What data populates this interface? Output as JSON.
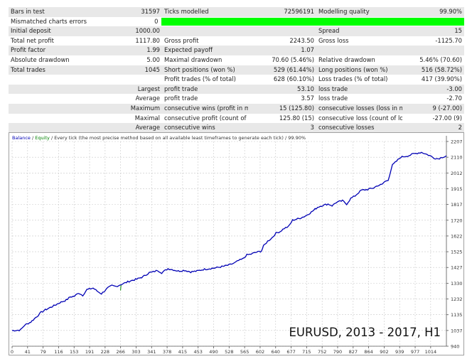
{
  "report": {
    "rows": [
      {
        "alt": true,
        "cells": [
          "Bars in test",
          "31597",
          "Ticks modelled",
          "72596191",
          "Modelling quality",
          "99.90%"
        ]
      },
      {
        "alt": false,
        "bar": true,
        "cells": [
          "Mismatched charts errors",
          "0"
        ]
      },
      {
        "alt": true,
        "cells": [
          "Initial deposit",
          "1000.00",
          "",
          "",
          "Spread",
          "15"
        ]
      },
      {
        "alt": false,
        "cells": [
          "Total net profit",
          "1117.80",
          "Gross profit",
          "2243.50",
          "Gross loss",
          "-1125.70"
        ]
      },
      {
        "alt": true,
        "cells": [
          "Profit factor",
          "1.99",
          "Expected payoff",
          "1.07",
          "",
          ""
        ]
      },
      {
        "alt": false,
        "cells": [
          "Absolute drawdown",
          "5.00",
          "Maximal drawdown",
          "70.60 (5.46%)",
          "Relative drawdown",
          "5.46% (70.60)"
        ]
      },
      {
        "alt": true,
        "cells": [
          "Total trades",
          "1045",
          "Short positions (won %)",
          "529 (61.44%)",
          "Long positions (won %)",
          "516 (58.72%)"
        ]
      },
      {
        "alt": false,
        "cells": [
          "",
          "",
          "Profit trades (% of total)",
          "628 (60.10%)",
          "Loss trades (% of total)",
          "417 (39.90%)"
        ]
      },
      {
        "alt": true,
        "cells": [
          "",
          "Largest",
          "profit trade",
          "53.10",
          "loss trade",
          "-3.00"
        ]
      },
      {
        "alt": false,
        "cells": [
          "",
          "Average",
          "profit trade",
          "3.57",
          "loss trade",
          "-2.70"
        ]
      },
      {
        "alt": true,
        "cells": [
          "",
          "Maximum",
          "consecutive wins (profit in mon...",
          "15 (125.80)",
          "consecutive losses (loss in money)",
          "9 (-27.00)"
        ]
      },
      {
        "alt": false,
        "cells": [
          "",
          "Maximal",
          "consecutive profit (count of wins)",
          "125.80 (15)",
          "consecutive loss (count of losses)",
          "-27.00 (9)"
        ]
      },
      {
        "alt": true,
        "cells": [
          "",
          "Average",
          "consecutive wins",
          "3",
          "consecutive losses",
          "2"
        ]
      }
    ]
  },
  "chart_data": {
    "type": "line",
    "legend": {
      "balance": "Balance",
      "sep": "/",
      "equity": "Equity",
      "rest": "/ Every tick (the most precise method based on all available least timeframes to generate each tick) / 99.90%"
    },
    "watermark": "EURUSD, 2013 - 2017, H1",
    "x_ticks": [
      "0",
      "41",
      "79",
      "116",
      "153",
      "191",
      "228",
      "266",
      "303",
      "341",
      "378",
      "415",
      "453",
      "490",
      "528",
      "565",
      "602",
      "640",
      "677",
      "715",
      "752",
      "790",
      "827",
      "864",
      "902",
      "939",
      "977",
      "1014"
    ],
    "y_ticks": [
      "2207",
      "2110",
      "2012",
      "1915",
      "1817",
      "1720",
      "1622",
      "1525",
      "1427",
      "1330",
      "1232",
      "1135",
      "1037",
      "940"
    ],
    "xlim": [
      0,
      1045
    ],
    "ylim": [
      940,
      2207
    ],
    "colors": {
      "balance": "#0000b4",
      "equity": "#008000",
      "grid": "#c8c8c8",
      "axis": "#555555"
    },
    "series": [
      {
        "name": "Balance",
        "x": [
          0,
          20,
          30,
          45,
          60,
          70,
          80,
          100,
          115,
          130,
          140,
          150,
          160,
          170,
          180,
          195,
          205,
          215,
          230,
          240,
          250,
          260,
          275,
          285,
          300,
          315,
          330,
          340,
          350,
          360,
          375,
          385,
          400,
          415,
          430,
          445,
          460,
          475,
          490,
          510,
          525,
          535,
          545,
          555,
          565,
          575,
          585,
          595,
          600,
          605,
          615,
          625,
          635,
          645,
          655,
          665,
          675,
          690,
          705,
          720,
          735,
          745,
          760,
          770,
          780,
          795,
          805,
          815,
          825,
          840,
          855,
          870,
          880,
          890,
          895,
          905,
          915,
          925,
          935,
          945,
          955,
          965,
          975,
          985,
          995,
          1005,
          1015,
          1025,
          1035,
          1045
        ],
        "values": [
          1037,
          1040,
          1070,
          1090,
          1125,
          1150,
          1165,
          1190,
          1210,
          1225,
          1245,
          1250,
          1270,
          1255,
          1290,
          1300,
          1280,
          1265,
          1300,
          1315,
          1310,
          1320,
          1335,
          1345,
          1355,
          1370,
          1395,
          1400,
          1410,
          1395,
          1420,
          1415,
          1405,
          1410,
          1400,
          1405,
          1415,
          1420,
          1425,
          1435,
          1445,
          1455,
          1470,
          1480,
          1505,
          1510,
          1520,
          1525,
          1530,
          1560,
          1590,
          1610,
          1640,
          1650,
          1670,
          1680,
          1720,
          1730,
          1745,
          1770,
          1800,
          1810,
          1820,
          1810,
          1830,
          1840,
          1820,
          1855,
          1870,
          1905,
          1910,
          1920,
          1935,
          1940,
          1955,
          1970,
          2060,
          2085,
          2110,
          2115,
          2120,
          2130,
          2135,
          2140,
          2130,
          2120,
          2105,
          2100,
          2110,
          2118
        ]
      },
      {
        "name": "Equity",
        "x": [
          261,
          262
        ],
        "values": [
          1285,
          1318
        ]
      }
    ]
  }
}
